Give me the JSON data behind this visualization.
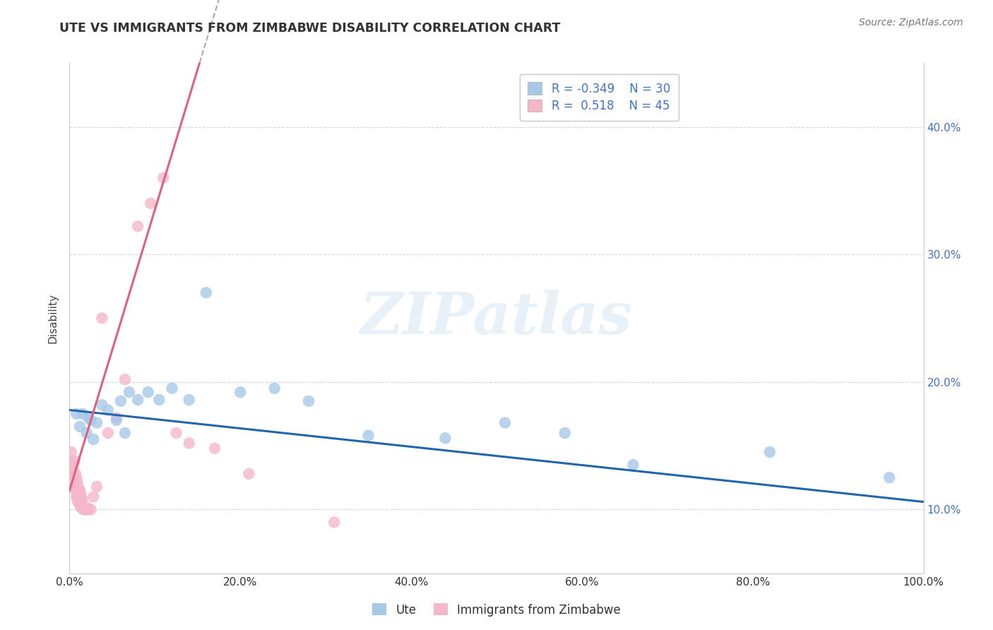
{
  "title": "UTE VS IMMIGRANTS FROM ZIMBABWE DISABILITY CORRELATION CHART",
  "source": "Source: ZipAtlas.com",
  "ylabel": "Disability",
  "ute_R": -0.349,
  "ute_N": 30,
  "imm_R": 0.518,
  "imm_N": 45,
  "ute_color": "#a8c8e8",
  "imm_color": "#f4b8ca",
  "ute_line_color": "#2166ac",
  "imm_line_color": "#e06080",
  "bg_color": "#ffffff",
  "grid_color": "#cccccc",
  "watermark": "ZIPatlas",
  "xlim": [
    0.0,
    1.0
  ],
  "ylim": [
    0.05,
    0.45
  ],
  "ytick_vals": [
    0.1,
    0.2,
    0.3,
    0.4
  ],
  "xtick_vals": [
    0.0,
    0.2,
    0.4,
    0.6,
    0.8,
    1.0
  ],
  "legend_labels": [
    "Ute",
    "Immigrants from Zimbabwe"
  ],
  "ute_x": [
    0.008,
    0.012,
    0.015,
    0.02,
    0.022,
    0.025,
    0.028,
    0.032,
    0.038,
    0.045,
    0.055,
    0.06,
    0.065,
    0.07,
    0.08,
    0.092,
    0.105,
    0.12,
    0.14,
    0.16,
    0.2,
    0.24,
    0.28,
    0.35,
    0.44,
    0.51,
    0.58,
    0.66,
    0.82,
    0.96
  ],
  "ute_y": [
    0.175,
    0.165,
    0.175,
    0.16,
    0.172,
    0.17,
    0.155,
    0.168,
    0.182,
    0.178,
    0.17,
    0.185,
    0.16,
    0.192,
    0.186,
    0.192,
    0.186,
    0.195,
    0.186,
    0.27,
    0.192,
    0.195,
    0.185,
    0.158,
    0.156,
    0.168,
    0.16,
    0.135,
    0.145,
    0.125
  ],
  "imm_x": [
    0.002,
    0.002,
    0.003,
    0.003,
    0.004,
    0.004,
    0.005,
    0.005,
    0.006,
    0.006,
    0.007,
    0.007,
    0.008,
    0.008,
    0.009,
    0.009,
    0.01,
    0.01,
    0.011,
    0.011,
    0.012,
    0.012,
    0.013,
    0.013,
    0.014,
    0.015,
    0.016,
    0.018,
    0.02,
    0.022,
    0.025,
    0.028,
    0.032,
    0.038,
    0.045,
    0.055,
    0.065,
    0.08,
    0.095,
    0.11,
    0.125,
    0.14,
    0.17,
    0.21,
    0.31
  ],
  "imm_y": [
    0.145,
    0.13,
    0.138,
    0.122,
    0.132,
    0.118,
    0.136,
    0.12,
    0.138,
    0.125,
    0.128,
    0.115,
    0.125,
    0.11,
    0.122,
    0.108,
    0.118,
    0.106,
    0.115,
    0.105,
    0.115,
    0.105,
    0.112,
    0.102,
    0.108,
    0.108,
    0.1,
    0.1,
    0.102,
    0.1,
    0.1,
    0.11,
    0.118,
    0.25,
    0.16,
    0.172,
    0.202,
    0.322,
    0.34,
    0.36,
    0.16,
    0.152,
    0.148,
    0.128,
    0.09
  ],
  "imm_line_x0": 0.0,
  "imm_line_x1": 0.135,
  "imm_line_slope": 2.2,
  "imm_line_intercept": 0.115,
  "ute_line_x0": 0.0,
  "ute_line_x1": 1.0,
  "ute_line_slope": -0.072,
  "ute_line_intercept": 0.178
}
